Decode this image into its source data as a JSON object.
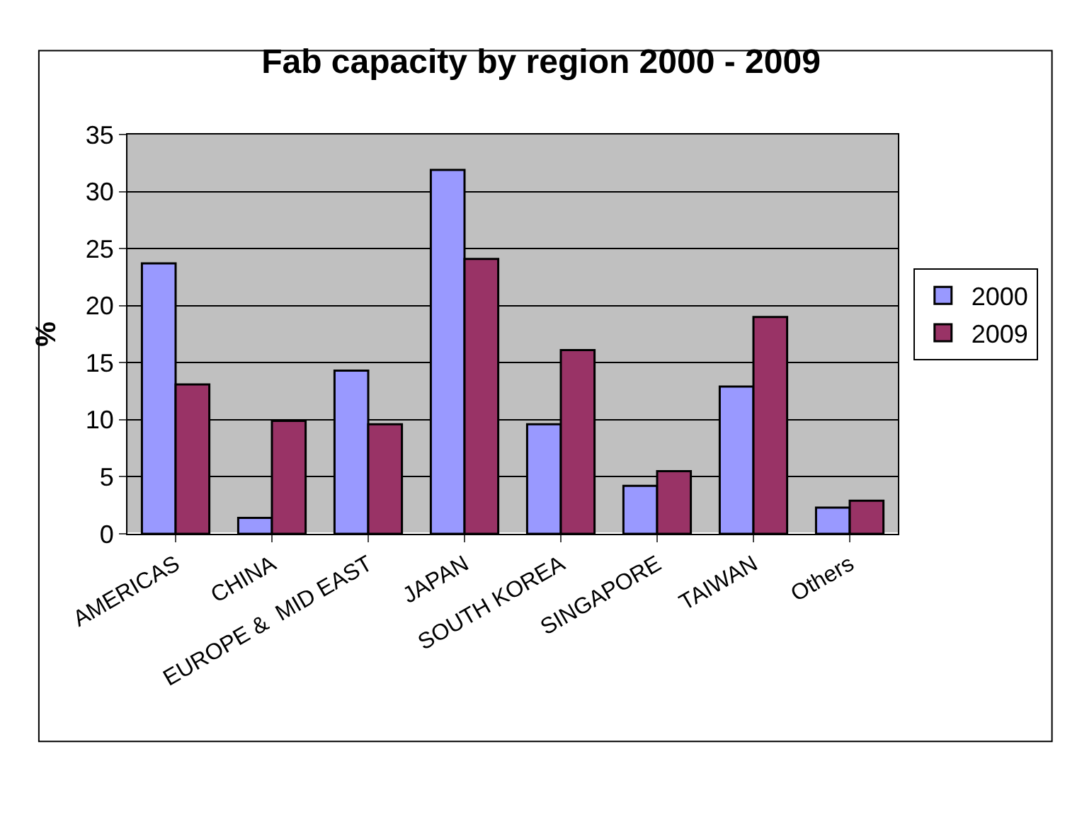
{
  "chart_data": {
    "type": "bar",
    "title": "Fab capacity by region 2000 - 2009",
    "ylabel": "%",
    "categories": [
      "AMERICAS",
      "CHINA",
      "EUROPE &  MID EAST",
      "JAPAN",
      "SOUTH KOREA",
      "SINGAPORE",
      "TAIWAN",
      "Others"
    ],
    "series": [
      {
        "name": "2000",
        "color": "#9999ff",
        "values": [
          23.7,
          1.4,
          14.3,
          31.9,
          9.6,
          4.2,
          12.9,
          2.3
        ]
      },
      {
        "name": "2009",
        "color": "#993366",
        "values": [
          13.1,
          9.9,
          9.6,
          24.1,
          16.1,
          5.5,
          19.0,
          2.9
        ]
      }
    ],
    "ylim": [
      0,
      35
    ],
    "yticks": [
      0,
      5,
      10,
      15,
      20,
      25,
      30,
      35
    ],
    "grid": "y",
    "legend": "right"
  }
}
